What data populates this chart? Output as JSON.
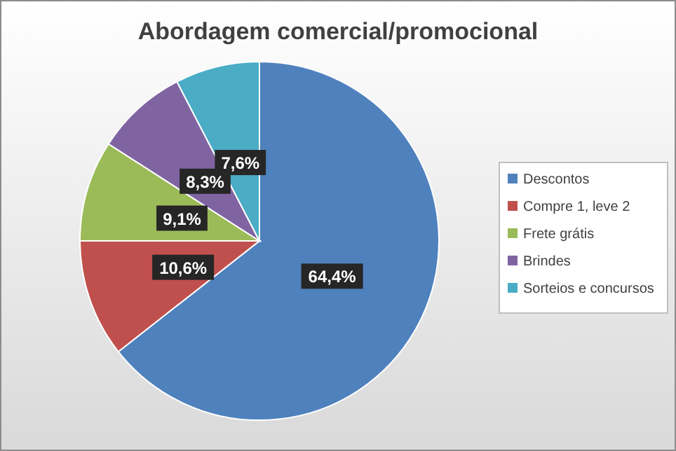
{
  "chart_data": {
    "type": "pie",
    "title": "Abordagem comercial/promocional",
    "categories": [
      "Descontos",
      "Compre 1, leve 2",
      "Frete grátis",
      "Brindes",
      "Sorteios e concursos"
    ],
    "values": [
      64.4,
      10.6,
      9.1,
      8.3,
      7.6
    ],
    "colors": [
      "#4f81bd",
      "#c0504d",
      "#9bbb59",
      "#8064a2",
      "#4bacc6"
    ],
    "value_labels": [
      "64,4%",
      "10,6%",
      "9,1%",
      "8,3%",
      "7,6%"
    ],
    "legend": "right"
  }
}
